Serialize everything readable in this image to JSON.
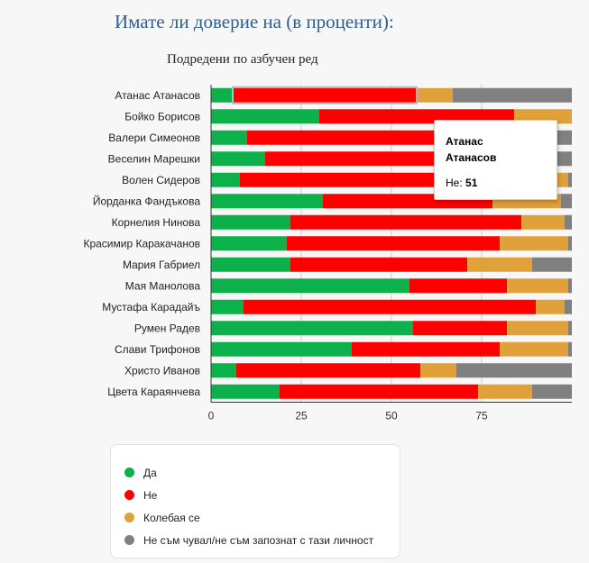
{
  "page": {
    "title": "Имате ли доверие на (в проценти):",
    "subtitle": "Подредени по азбучен ред"
  },
  "colors": {
    "yes": "#0db14b",
    "no": "#ff0000",
    "undecided": "#e0a03a",
    "unknown": "#808080",
    "axis": "#333333",
    "grid": "#cccccc"
  },
  "chart_data": {
    "type": "bar",
    "orientation": "horizontal",
    "stacked": true,
    "title": "Подредени по азбучен ред",
    "categories": [
      "Атанас Атанасов",
      "Бойко Борисов",
      "Валери Симеонов",
      "Веселин Марешки",
      "Волен Сидеров",
      "Йорданка Фандъкова",
      "Корнелия Нинова",
      "Красимир Каракачанов",
      "Мария Габриел",
      "Мая Манолова",
      "Мустафа Карадайъ",
      "Румен Радев",
      "Слави Трифонов",
      "Христо Иванов",
      "Цвета Караянчева"
    ],
    "series": [
      {
        "name": "Да",
        "color": "#0db14b",
        "values": [
          6,
          30,
          10,
          15,
          8,
          31,
          22,
          21,
          22,
          55,
          9,
          56,
          39,
          7,
          19
        ]
      },
      {
        "name": "Не",
        "color": "#ff0000",
        "values": [
          51,
          54,
          81,
          72,
          86,
          47,
          64,
          59,
          49,
          27,
          81,
          26,
          41,
          51,
          55
        ]
      },
      {
        "name": "Колебая се",
        "color": "#e0a03a",
        "values": [
          10,
          16,
          5,
          9,
          5,
          19,
          12,
          19,
          18,
          17,
          8,
          17,
          19,
          10,
          15
        ]
      },
      {
        "name": "Не съм чувал/не съм запознат с тази личност",
        "color": "#808080",
        "values": [
          33,
          0,
          4,
          4,
          1,
          3,
          2,
          1,
          11,
          1,
          2,
          1,
          1,
          32,
          11
        ]
      }
    ],
    "xlim": [
      0,
      100
    ],
    "xticks": [
      0,
      25,
      50,
      75
    ],
    "grid": true,
    "legend_position": "bottom",
    "tooltip": {
      "category": "Атанас Атанасов",
      "name_line1": "Атанас",
      "name_line2": "Атанасов",
      "series": "Не",
      "value": "51"
    }
  }
}
